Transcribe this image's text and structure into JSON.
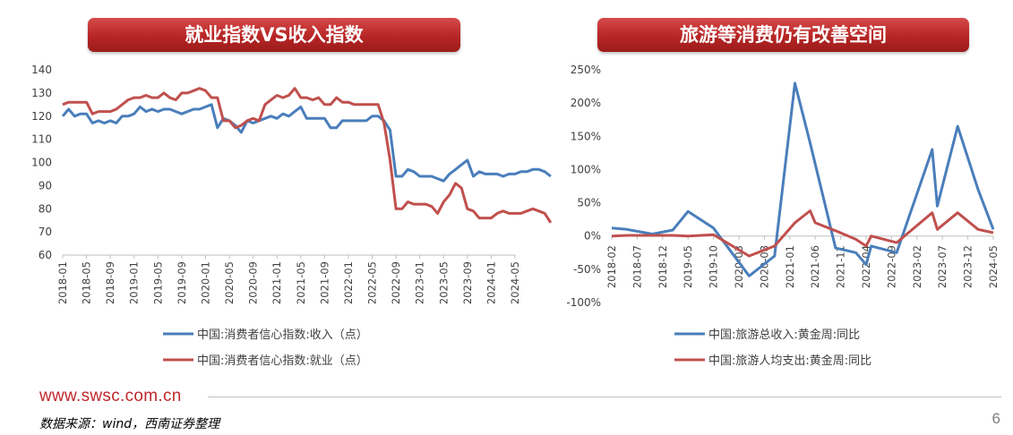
{
  "footer": {
    "website": "www.swsc.com.cn",
    "source": "数据来源：wind，西南证券整理",
    "page_number": "6"
  },
  "chart_data": [
    {
      "type": "line",
      "title": "就业指数VS收入指数",
      "ylim": [
        60,
        140
      ],
      "yticks": [
        "60",
        "70",
        "80",
        "90",
        "100",
        "110",
        "120",
        "130",
        "140"
      ],
      "xtick_labels": [
        "2018-01",
        "2018-05",
        "2018-09",
        "2019-01",
        "2019-05",
        "2019-09",
        "2020-01",
        "2020-05",
        "2020-09",
        "2021-01",
        "2021-05",
        "2021-09",
        "2022-01",
        "2022-05",
        "2022-09",
        "2023-01",
        "2023-05",
        "2023-09",
        "2024-01",
        "2024-05"
      ],
      "x_start": "2018-01",
      "x_end": "2024-05",
      "grid": false,
      "legend_position": "bottom",
      "series": [
        {
          "name": "中国:消费者信心指数:收入（点）",
          "color": "#4a7ebb",
          "values": [
            120,
            123,
            120,
            121,
            121,
            117,
            118,
            117,
            118,
            117,
            120,
            120,
            121,
            124,
            122,
            123,
            122,
            123,
            123,
            122,
            121,
            122,
            123,
            123,
            124,
            125,
            115,
            119,
            118,
            116,
            113,
            118,
            117,
            118,
            119,
            120,
            119,
            121,
            120,
            122,
            124,
            119,
            119,
            119,
            119,
            115,
            115,
            118,
            118,
            118,
            118,
            118,
            120,
            120,
            118,
            114,
            94,
            94,
            97,
            96,
            94,
            94,
            94,
            93,
            92,
            95,
            97,
            99,
            101,
            94,
            96,
            95,
            95,
            95,
            94,
            95,
            95,
            96,
            96,
            97,
            97,
            96,
            94
          ]
        },
        {
          "name": "中国:消费者信心指数:就业（点）",
          "color": "#c0504d",
          "values": [
            125,
            126,
            126,
            126,
            126,
            121,
            122,
            122,
            122,
            123,
            125,
            127,
            128,
            128,
            129,
            128,
            128,
            130,
            128,
            127,
            130,
            130,
            131,
            132,
            131,
            128,
            128,
            118,
            118,
            115,
            116,
            118,
            119,
            118,
            125,
            127,
            129,
            128,
            129,
            132,
            128,
            128,
            127,
            128,
            125,
            125,
            128,
            126,
            126,
            125,
            125,
            125,
            125,
            125,
            117,
            101,
            80,
            80,
            83,
            82,
            82,
            82,
            81,
            78,
            83,
            86,
            91,
            89,
            80,
            79,
            76,
            76,
            76,
            78,
            79,
            78,
            78,
            78,
            79,
            80,
            79,
            78,
            74
          ]
        }
      ]
    },
    {
      "type": "line",
      "title": "旅游等消费仍有改善空间",
      "ylim": [
        -100,
        250
      ],
      "yticks": [
        "-100%",
        "-50%",
        "0%",
        "50%",
        "100%",
        "150%",
        "200%",
        "250%"
      ],
      "xtick_labels": [
        "2018-02",
        "2018-07",
        "2018-12",
        "2019-05",
        "2019-10",
        "2020-03",
        "2020-08",
        "2021-01",
        "2021-06",
        "2021-11",
        "2022-04",
        "2022-09",
        "2023-02",
        "2023-07",
        "2023-12",
        "2024-05"
      ],
      "x_start": "2018-02",
      "x_end": "2024-05",
      "grid": false,
      "legend_position": "bottom",
      "series": [
        {
          "name": "中国:旅游总收入:黄金周:同比",
          "color": "#4a7ebb",
          "points": [
            [
              "2018-02",
              12
            ],
            [
              "2018-05",
              10
            ],
            [
              "2018-10",
              3
            ],
            [
              "2019-02",
              9
            ],
            [
              "2019-05",
              37
            ],
            [
              "2019-10",
              12
            ],
            [
              "2020-05",
              -60
            ],
            [
              "2020-10",
              -30
            ],
            [
              "2021-02",
              230
            ],
            [
              "2021-05",
              140
            ],
            [
              "2021-10",
              -18
            ],
            [
              "2022-02",
              -25
            ],
            [
              "2022-04",
              -43
            ],
            [
              "2022-05",
              -15
            ],
            [
              "2022-10",
              -25
            ],
            [
              "2023-05",
              130
            ],
            [
              "2023-06",
              45
            ],
            [
              "2023-10",
              165
            ],
            [
              "2024-02",
              70
            ],
            [
              "2024-05",
              10
            ]
          ]
        },
        {
          "name": "中国:旅游人均支出:黄金周:同比",
          "color": "#c0504d",
          "points": [
            [
              "2018-02",
              0
            ],
            [
              "2018-05",
              1
            ],
            [
              "2018-10",
              1
            ],
            [
              "2019-02",
              1
            ],
            [
              "2019-05",
              0
            ],
            [
              "2019-10",
              2
            ],
            [
              "2020-05",
              -30
            ],
            [
              "2020-10",
              -15
            ],
            [
              "2021-02",
              20
            ],
            [
              "2021-05",
              38
            ],
            [
              "2021-06",
              20
            ],
            [
              "2021-10",
              8
            ],
            [
              "2022-02",
              -5
            ],
            [
              "2022-04",
              -15
            ],
            [
              "2022-05",
              0
            ],
            [
              "2022-10",
              -10
            ],
            [
              "2023-05",
              35
            ],
            [
              "2023-06",
              10
            ],
            [
              "2023-10",
              35
            ],
            [
              "2024-02",
              10
            ],
            [
              "2024-05",
              5
            ]
          ]
        }
      ]
    }
  ]
}
